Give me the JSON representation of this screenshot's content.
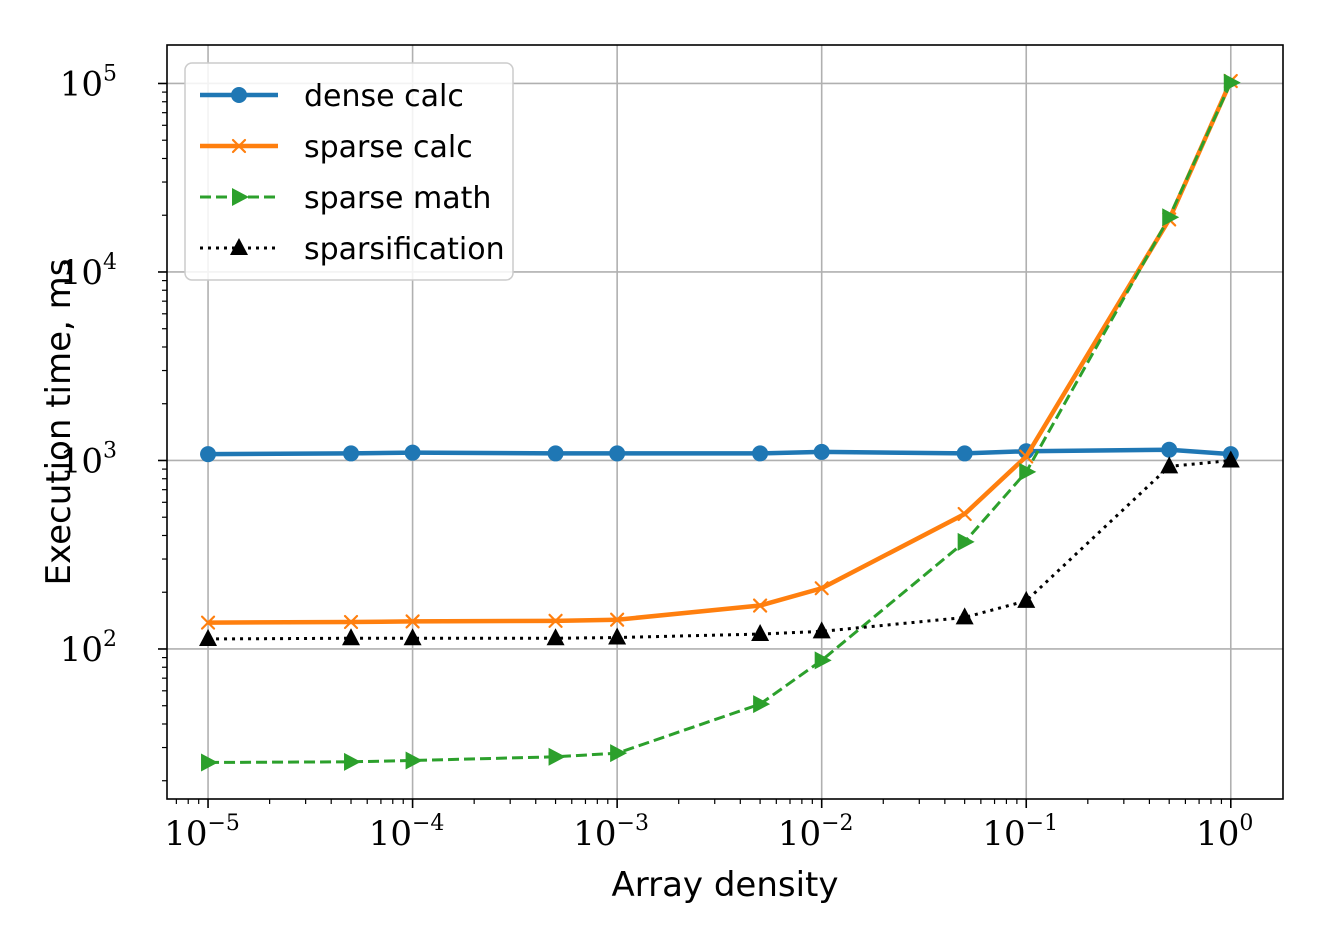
{
  "chart_data": {
    "type": "line",
    "title": "",
    "xlabel": "Array density",
    "ylabel": "Execution time, ms",
    "xscale": "log",
    "yscale": "log",
    "xlim": [
      6.3e-06,
      1.8
    ],
    "ylim": [
      16,
      160000
    ],
    "grid": true,
    "legend_position": "top-left",
    "x_ticks": [
      {
        "base": "10",
        "exp": "−5"
      },
      {
        "base": "10",
        "exp": "−4"
      },
      {
        "base": "10",
        "exp": "−3"
      },
      {
        "base": "10",
        "exp": "−2"
      },
      {
        "base": "10",
        "exp": "−1"
      },
      {
        "base": "10",
        "exp": "0"
      }
    ],
    "y_ticks": [
      {
        "base": "10",
        "exp": "2"
      },
      {
        "base": "10",
        "exp": "3"
      },
      {
        "base": "10",
        "exp": "4"
      },
      {
        "base": "10",
        "exp": "5"
      }
    ],
    "x": [
      1e-05,
      5e-05,
      0.0001,
      0.0005,
      0.001,
      0.005,
      0.01,
      0.05,
      0.1,
      0.5,
      1
    ],
    "series": [
      {
        "name": "dense calc",
        "color": "#1f77b4",
        "line_style": "solid",
        "marker": "circle",
        "values": [
          1080,
          1090,
          1100,
          1090,
          1090,
          1090,
          1110,
          1090,
          1120,
          1140,
          1080
        ]
      },
      {
        "name": "sparse calc",
        "color": "#ff7f0e",
        "line_style": "solid",
        "marker": "x",
        "values": [
          138,
          139,
          140,
          141,
          143,
          170,
          210,
          520,
          1050,
          19000,
          103000
        ]
      },
      {
        "name": "sparse math",
        "color": "#2ca02c",
        "line_style": "dashed",
        "marker": "triangle-right",
        "values": [
          25,
          25.2,
          25.6,
          26.8,
          28,
          51,
          87,
          370,
          870,
          19500,
          101000
        ]
      },
      {
        "name": "sparsification",
        "color": "#000000",
        "line_style": "dotted",
        "marker": "triangle-up",
        "values": [
          113,
          114,
          114,
          114,
          115,
          120,
          124,
          147,
          180,
          930,
          1000
        ]
      }
    ]
  }
}
